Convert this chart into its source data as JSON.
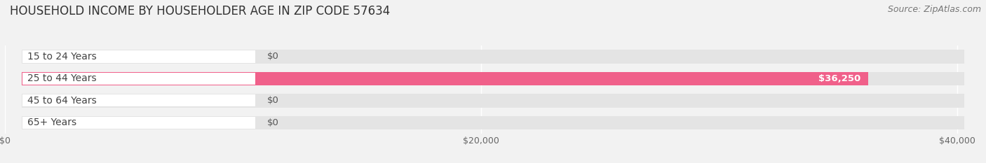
{
  "title": "HOUSEHOLD INCOME BY HOUSEHOLDER AGE IN ZIP CODE 57634",
  "source": "Source: ZipAtlas.com",
  "categories": [
    "15 to 24 Years",
    "25 to 44 Years",
    "45 to 64 Years",
    "65+ Years"
  ],
  "values": [
    0,
    36250,
    0,
    0
  ],
  "bar_colors": [
    "#a0a0d0",
    "#f0608a",
    "#f5c080",
    "#f09090"
  ],
  "label_circle_colors": [
    "#a0a0d0",
    "#f0608a",
    "#f5c080",
    "#f09090"
  ],
  "xlim": [
    0,
    41000
  ],
  "xticks": [
    0,
    20000,
    40000
  ],
  "xtick_labels": [
    "$0",
    "$20,000",
    "$40,000"
  ],
  "bg_color": "#f2f2f2",
  "bar_bg_color": "#e4e4e4",
  "row_bg_color": "#ebebeb",
  "title_fontsize": 12,
  "source_fontsize": 9,
  "label_fontsize": 10,
  "value_fontsize": 9.5
}
